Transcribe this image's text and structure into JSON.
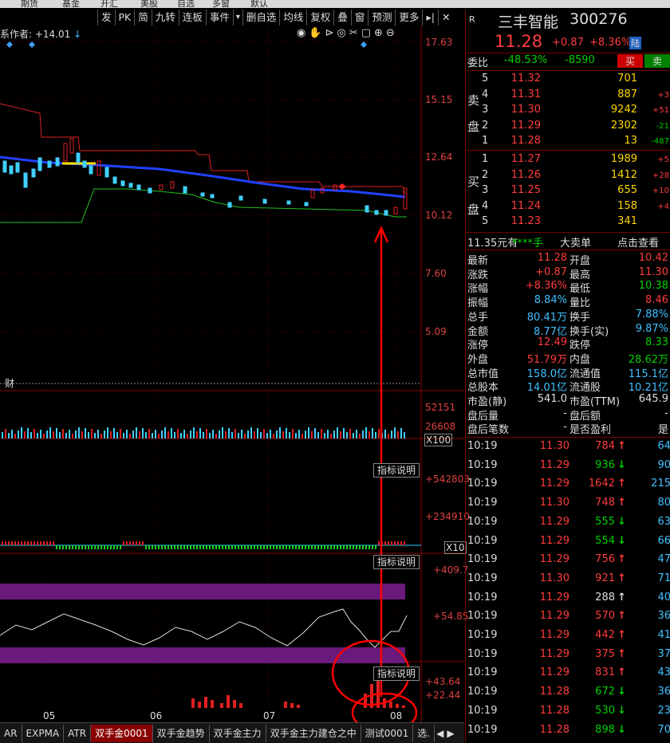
{
  "top_strip": [
    "期货",
    "基金",
    "开汇",
    "美股",
    "自选",
    "多窗",
    "默认"
  ],
  "toolbar": [
    "发",
    "PK",
    "简",
    "九转",
    "连板",
    "事件",
    "▾",
    "删自选",
    "均线",
    "复权",
    "叠",
    "窗",
    "预测",
    "更多",
    "▸|",
    "✕"
  ],
  "indicator_title": "系作者: +14.01",
  "price_axis": [
    "17.63",
    "15.15",
    "12.64",
    "10.12",
    "7.60",
    "5.09"
  ],
  "volume_axis": [
    "52151",
    "26608",
    "X100"
  ],
  "macd_axis": [
    "+542803",
    "+234910",
    "X10"
  ],
  "osc_axis": [
    "+409.7",
    "+54.85"
  ],
  "bar_axis": [
    "+43.64",
    "+22.44"
  ],
  "fin_label": "财",
  "indicator_help": "指标说明",
  "x_labels": [
    "05",
    "06",
    "07",
    "08"
  ],
  "tabs": [
    "AR",
    "EXPMA",
    "ATR",
    "双手金0001",
    "双手金趋势",
    "双手金主力",
    "双手金主力建仓之中",
    "测试0001",
    "选."
  ],
  "stock": {
    "badge": "R",
    "name": "三丰智能",
    "code": "300276",
    "price": "11.28",
    "change": "+0.87",
    "pct": "+8.36%",
    "tag": "陆"
  },
  "weibi": {
    "label": "委比",
    "pct": "-48.53%",
    "diff": "-8590",
    "buy_btn": "买",
    "sell_btn": "卖"
  },
  "sell_label": [
    "卖",
    "盘"
  ],
  "buy_label": [
    "买",
    "盘"
  ],
  "asks": [
    {
      "lvl": "5",
      "price": "11.32",
      "vol": "701",
      "chg": ""
    },
    {
      "lvl": "4",
      "price": "11.31",
      "vol": "887",
      "chg": "+3"
    },
    {
      "lvl": "3",
      "price": "11.30",
      "vol": "9242",
      "chg": "+51"
    },
    {
      "lvl": "2",
      "price": "11.29",
      "vol": "2302",
      "chg": "-21"
    },
    {
      "lvl": "1",
      "price": "11.28",
      "vol": "13",
      "chg": "-487"
    }
  ],
  "bids": [
    {
      "lvl": "1",
      "price": "11.27",
      "vol": "1989",
      "chg": "+5"
    },
    {
      "lvl": "2",
      "price": "11.26",
      "vol": "1412",
      "chg": "+28"
    },
    {
      "lvl": "3",
      "price": "11.25",
      "vol": "655",
      "chg": "+10"
    },
    {
      "lvl": "4",
      "price": "11.24",
      "vol": "158",
      "chg": "+4"
    },
    {
      "lvl": "5",
      "price": "11.23",
      "vol": "341",
      "chg": ""
    }
  ],
  "big_order": {
    "price": "11.35元有",
    "stars": "****手",
    "label": "大卖单",
    "link": "点击查看"
  },
  "stats": [
    [
      "最新",
      "11.28",
      "开盘",
      "10.42"
    ],
    [
      "涨跌",
      "+0.87",
      "最高",
      "11.30"
    ],
    [
      "涨幅",
      "+8.36%",
      "最低",
      "10.38"
    ],
    [
      "振幅",
      "8.84%",
      "量比",
      "8.46"
    ],
    [
      "总手",
      "80.41万",
      "换手",
      "7.88%"
    ],
    [
      "金额",
      "8.77亿",
      "换手(实)",
      "9.87%"
    ],
    [
      "涨停",
      "12.49",
      "跌停",
      "8.33"
    ],
    [
      "外盘",
      "51.79万",
      "内盘",
      "28.62万"
    ],
    [
      "总市值",
      "158.0亿",
      "流通值",
      "115.1亿"
    ],
    [
      "总股本",
      "14.01亿",
      "流通股",
      "10.21亿"
    ],
    [
      "市盈(静)",
      "541.0",
      "市盈(TTM)",
      "645.9"
    ],
    [
      "盘后量",
      "-",
      "盘后额",
      "-"
    ],
    [
      "盘后笔数",
      "-",
      "是否盈利",
      "是"
    ]
  ],
  "ticks": [
    {
      "t": "10:19",
      "p": "11.30",
      "v": "784",
      "d": "up",
      "n": "64"
    },
    {
      "t": "10:19",
      "p": "11.29",
      "v": "936",
      "d": "down",
      "n": "90"
    },
    {
      "t": "10:19",
      "p": "11.29",
      "v": "1642",
      "d": "up",
      "n": "215"
    },
    {
      "t": "10:19",
      "p": "11.30",
      "v": "748",
      "d": "up",
      "n": "80"
    },
    {
      "t": "10:19",
      "p": "11.29",
      "v": "555",
      "d": "down",
      "n": "63"
    },
    {
      "t": "10:19",
      "p": "11.29",
      "v": "554",
      "d": "down",
      "n": "66"
    },
    {
      "t": "10:19",
      "p": "11.29",
      "v": "756",
      "d": "up",
      "n": "47"
    },
    {
      "t": "10:19",
      "p": "11.30",
      "v": "921",
      "d": "up",
      "n": "71"
    },
    {
      "t": "10:19",
      "p": "11.29",
      "v": "288",
      "d": "upw",
      "n": "40"
    },
    {
      "t": "10:19",
      "p": "11.29",
      "v": "570",
      "d": "up",
      "n": "36"
    },
    {
      "t": "10:19",
      "p": "11.29",
      "v": "442",
      "d": "up",
      "n": "41"
    },
    {
      "t": "10:19",
      "p": "11.29",
      "v": "375",
      "d": "up",
      "n": "37"
    },
    {
      "t": "10:19",
      "p": "11.29",
      "v": "831",
      "d": "up",
      "n": "43"
    },
    {
      "t": "10:19",
      "p": "11.28",
      "v": "672",
      "d": "down",
      "n": "36"
    },
    {
      "t": "10:19",
      "p": "11.28",
      "v": "530",
      "d": "down",
      "n": "23"
    },
    {
      "t": "10:19",
      "p": "11.28",
      "v": "898",
      "d": "down",
      "n": "70"
    }
  ]
}
